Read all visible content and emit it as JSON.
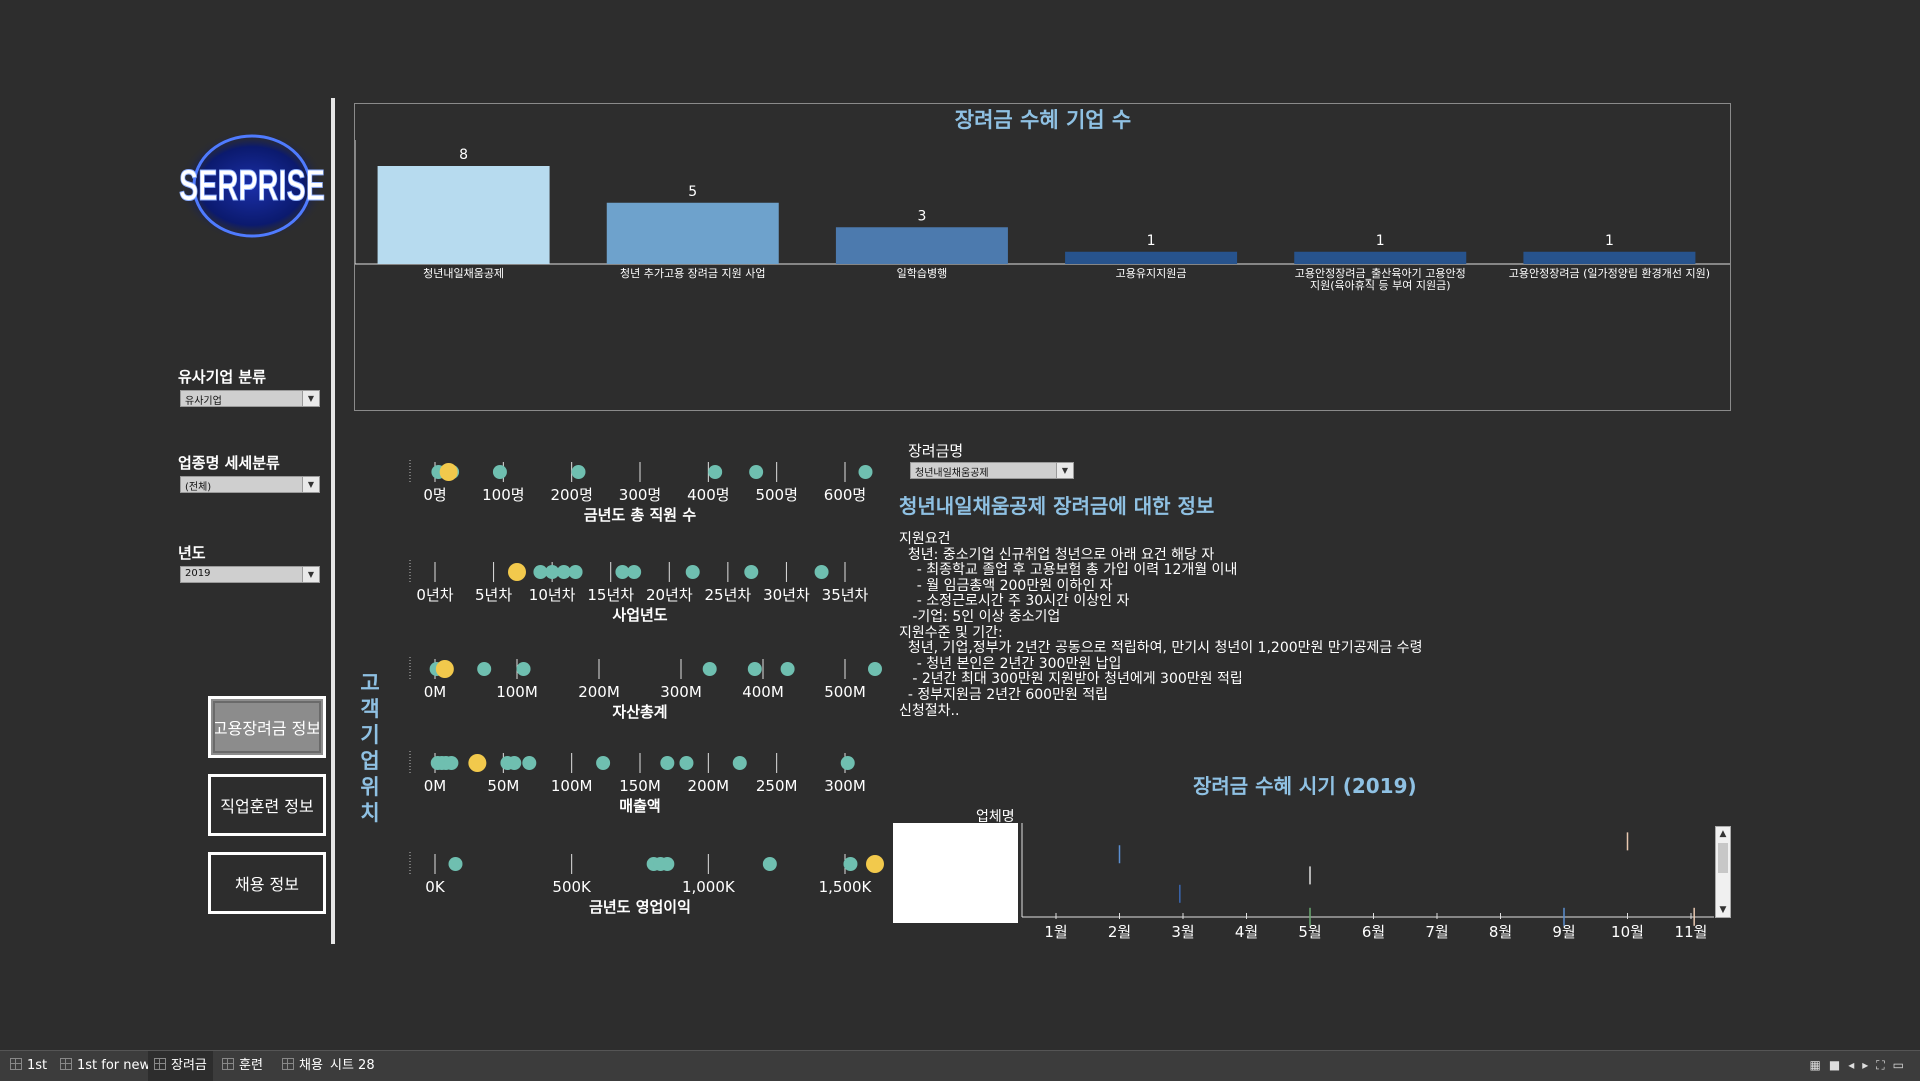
{
  "logo": {
    "text": "SERPRISE"
  },
  "filters": {
    "company_class": {
      "label": "유사기업 분류",
      "value": "유사기업"
    },
    "industry": {
      "label": "업종명 세세분류",
      "value": "(전체)"
    },
    "year": {
      "label": "년도",
      "value": "2019"
    }
  },
  "nav": {
    "subsidy": "고용장려금 정보",
    "training": "직업훈련 정보",
    "hiring": "채용 정보"
  },
  "customer_location_label": "고객\n기업\n위치",
  "bar_chart": {
    "title": "장려금 수혜 기업 수",
    "categories": [
      [
        "청년내일채움공제"
      ],
      [
        "청년 추가고용 장려금 지원 사업"
      ],
      [
        "일학습병행"
      ],
      [
        "고용유지지원금"
      ],
      [
        "고용안정장려금_출산육아기 고용안정",
        "지원(육아휴직 등 부여 지원금)"
      ],
      [
        "고용안정장려금 (일가정양립 환경개선 지원)"
      ]
    ],
    "values": [
      8,
      5,
      3,
      1,
      1,
      1
    ],
    "colors": [
      "#b7dbef",
      "#6ea2cc",
      "#4c7aae",
      "#27538d",
      "#27538d",
      "#27538d"
    ]
  },
  "dot_plots": [
    {
      "title": "금년도 총 직원 수",
      "ticks": [
        "0명",
        "100명",
        "200명",
        "300명",
        "400명",
        "500명",
        "600명"
      ],
      "tick_values": [
        0,
        100,
        200,
        300,
        400,
        500,
        600
      ],
      "min": 0,
      "max": 600,
      "points": [
        5,
        15,
        25,
        95,
        210,
        410,
        470,
        630
      ],
      "highlight": 20
    },
    {
      "title": "사업년도",
      "ticks": [
        "0년차",
        "5년차",
        "10년차",
        "15년차",
        "20년차",
        "25년차",
        "30년차",
        "35년차"
      ],
      "tick_values": [
        0,
        5,
        10,
        15,
        20,
        25,
        30,
        35
      ],
      "min": 0,
      "max": 35,
      "points": [
        9,
        10,
        11,
        12,
        16,
        17,
        22,
        27,
        33
      ],
      "highlight": 7
    },
    {
      "title": "자산총계",
      "ticks": [
        "0M",
        "100M",
        "200M",
        "300M",
        "400M",
        "500M"
      ],
      "tick_values": [
        0,
        100,
        200,
        300,
        400,
        500
      ],
      "min": 0,
      "max": 500,
      "points": [
        2,
        60,
        108,
        335,
        390,
        430,
        548
      ],
      "highlight": 12
    },
    {
      "title": "매출액",
      "ticks": [
        "0M",
        "50M",
        "100M",
        "150M",
        "200M",
        "250M",
        "300M"
      ],
      "tick_values": [
        0,
        50,
        100,
        150,
        200,
        250,
        300
      ],
      "min": 0,
      "max": 300,
      "points": [
        2,
        5,
        8,
        12,
        53,
        58,
        69,
        123,
        170,
        184,
        223,
        302
      ],
      "highlight": 31
    },
    {
      "title": "금년도 영업이익",
      "ticks": [
        "0K",
        "500K",
        "1,000K",
        "1,500K"
      ],
      "tick_values": [
        0,
        500,
        1000,
        1500
      ],
      "min": 0,
      "max": 1500,
      "points": [
        75,
        800,
        825,
        850,
        1225,
        1520,
        1650
      ],
      "highlight": 1760
    }
  ],
  "subsidy_select": {
    "label": "장려금명",
    "value": "청년내일채움공제"
  },
  "info": {
    "title": "청년내일채움공제 장려금에 대한 정보",
    "body": "지원요건\n  청년: 중소기업 신규취업 청년으로 아래 요건 해당 자\n    - 최종학교 졸업 후 고용보험 총 가입 이력 12개월 이내\n    - 월 임금총액 200만원 이하인 자\n    - 소정근로시간 주 30시간 이상인 자\n   -기업: 5인 이상 중소기업\n지원수준 및 기간:\n  청년, 기업,정부가 2년간 공동으로 적립하여, 만기시 청년이 1,200만원 만기공제금 수령\n    - 청년 본인은 2년간 300만원 납입\n   - 2년간 최대 300만원 지원받아 청년에게 300만원 적립\n  - 정부지원금 2년간 600만원 적립\n신청절차.."
  },
  "timeline": {
    "title": "장려금 수혜 시기 (2019)",
    "legend_label": "업체명",
    "months": [
      "1월",
      "2월",
      "3월",
      "4월",
      "5월",
      "6월",
      "7월",
      "8월",
      "9월",
      "10월",
      "11월"
    ],
    "marks": [
      {
        "month": 2.0,
        "color": "#5b8fd0",
        "level": 0.78
      },
      {
        "month": 2.95,
        "color": "#3a66b0",
        "level": 0.35
      },
      {
        "month": 5.0,
        "color": "#e0e0e0",
        "level": 0.55
      },
      {
        "month": 5.0,
        "color": "#6aaa70",
        "level": 0.1
      },
      {
        "month": 9.0,
        "color": "#5b8fd0",
        "level": 0.1
      },
      {
        "month": 10.0,
        "color": "#e8c8b0",
        "level": 0.92
      },
      {
        "month": 11.05,
        "color": "#e8c8b0",
        "level": 0.1
      }
    ]
  },
  "tabs": [
    "1st",
    "1st for new",
    "장려금",
    "훈련",
    "채용",
    "시트 28"
  ],
  "active_tab": 2,
  "colors": {
    "accent": "#8fc1e3",
    "dot": "#6fbfb0",
    "highlight": "#f2c94c"
  }
}
